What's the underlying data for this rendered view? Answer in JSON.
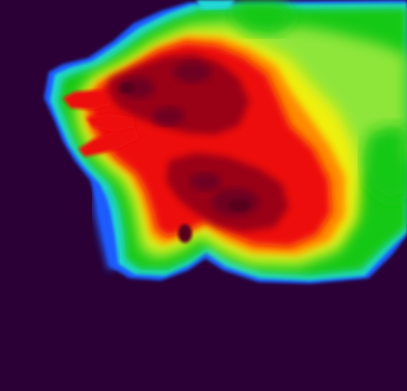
{
  "image": {
    "kind": "false-color heat map",
    "labels": [],
    "colors": {
      "background": "#2a0037",
      "blue": "#1f5cff",
      "cyan": "#20d8d8",
      "green": "#14c814",
      "lime": "#8ee63a",
      "yellow": "#f0f00a",
      "orange": "#ff8a00",
      "red": "#ee1010",
      "dark_red": "#9a0016",
      "maroon": "#6e0020",
      "deep_maroon": "#58001a"
    }
  }
}
